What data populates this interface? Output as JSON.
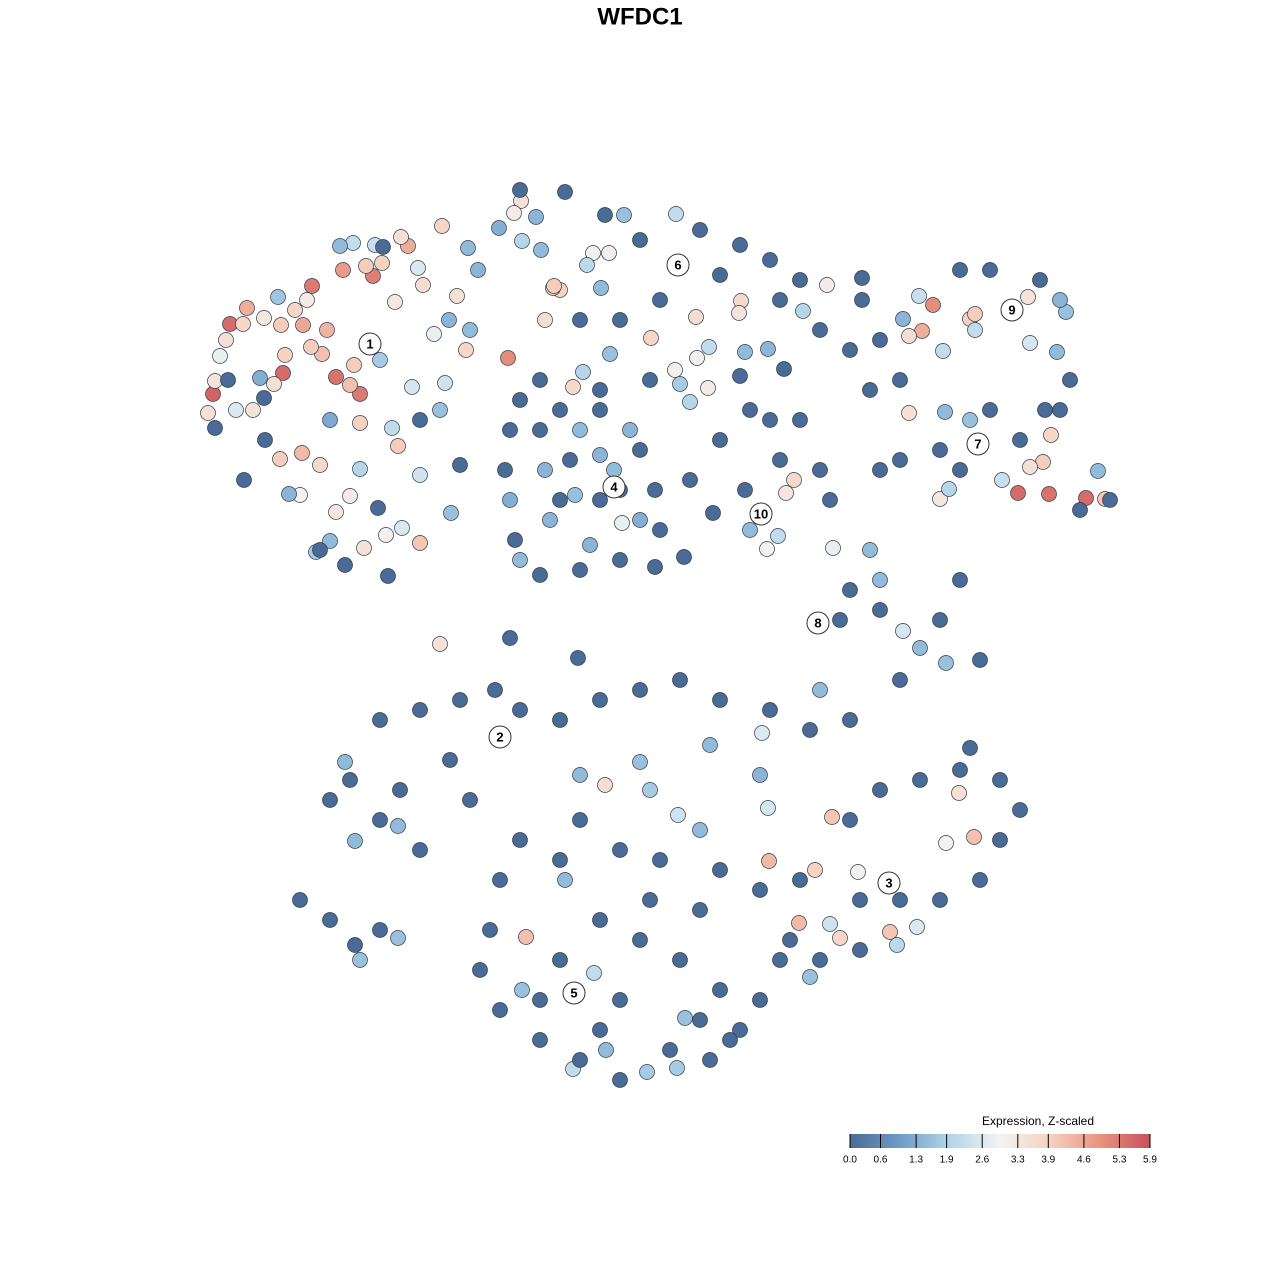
{
  "chart_data": {
    "type": "scatter",
    "title": "WFDC1",
    "xlim": [
      195,
      1135
    ],
    "ylim": [
      1095,
      185
    ],
    "x": [
      230,
      213,
      283,
      312,
      343,
      373,
      360,
      336,
      508,
      408,
      247,
      303,
      327,
      350,
      302,
      366,
      382,
      243,
      281,
      295,
      285,
      322,
      311,
      354,
      280,
      320,
      360,
      398,
      420,
      442,
      401,
      423,
      457,
      466,
      215,
      226,
      208,
      253,
      274,
      307,
      264,
      395,
      364,
      350,
      336,
      386,
      440,
      220,
      236,
      300,
      402,
      353,
      375,
      418,
      434,
      412,
      392,
      445,
      360,
      316,
      330,
      451,
      278,
      289,
      340,
      468,
      478,
      449,
      420,
      260,
      330,
      380,
      440,
      470,
      244,
      228,
      215,
      264,
      320,
      345,
      388,
      383,
      420,
      460,
      378,
      265,
      521,
      514,
      560,
      553,
      554,
      545,
      573,
      593,
      609,
      696,
      651,
      741,
      827,
      739,
      697,
      708,
      675,
      536,
      541,
      587,
      624,
      676,
      601,
      610,
      745,
      768,
      709,
      522,
      499,
      803,
      680,
      690,
      583,
      520,
      565,
      605,
      640,
      700,
      740,
      770,
      800,
      820,
      850,
      780,
      720,
      660,
      620,
      580,
      540,
      520,
      600,
      650,
      740,
      784,
      862,
      614,
      600,
      575,
      550,
      590,
      622,
      640,
      520,
      545,
      580,
      510,
      630,
      505,
      510,
      540,
      560,
      600,
      640,
      655,
      660,
      620,
      580,
      540,
      515,
      560,
      600,
      570,
      620,
      655,
      684,
      933,
      922,
      970,
      975,
      1018,
      1049,
      1086,
      1105,
      1043,
      1051,
      1028,
      1030,
      940,
      909,
      909,
      1014,
      919,
      975,
      943,
      949,
      1002,
      1066,
      1057,
      1098,
      903,
      945,
      970,
      1060,
      1030,
      862,
      880,
      900,
      960,
      990,
      1040,
      1070,
      1060,
      1020,
      990,
      940,
      900,
      870,
      1080,
      1110,
      1045,
      880,
      960,
      794,
      786,
      767,
      760,
      750,
      778,
      870,
      880,
      903,
      946,
      920,
      833,
      745,
      780,
      713,
      830,
      850,
      840,
      880,
      900,
      940,
      980,
      960,
      820,
      770,
      720,
      690,
      750,
      800,
      345,
      355,
      398,
      500,
      330,
      350,
      380,
      420,
      460,
      495,
      520,
      400,
      420,
      380,
      450,
      470,
      300,
      330,
      355,
      360,
      380,
      398,
      510,
      578,
      605,
      526,
      769,
      815,
      832,
      799,
      974,
      959,
      840,
      890,
      573,
      606,
      647,
      677,
      685,
      594,
      522,
      650,
      678,
      762,
      710,
      768,
      858,
      946,
      897,
      917,
      830,
      810,
      580,
      640,
      700,
      760,
      820,
      565,
      560,
      600,
      640,
      680,
      720,
      770,
      810,
      850,
      580,
      620,
      660,
      720,
      760,
      560,
      520,
      500,
      490,
      480,
      500,
      540,
      580,
      620,
      670,
      710,
      740,
      760,
      720,
      680,
      640,
      600,
      560,
      620,
      540,
      790,
      800,
      850,
      880,
      920,
      960,
      1000,
      1020,
      1000,
      980,
      940,
      900,
      860,
      820,
      780,
      970,
      860,
      700,
      650,
      600,
      700,
      730
    ],
    "y": [
      324,
      394,
      373,
      286,
      270,
      276,
      394,
      377,
      358,
      246,
      308,
      325,
      330,
      385,
      453,
      266,
      263,
      324,
      325,
      310,
      355,
      354,
      347,
      365,
      459,
      465,
      423,
      446,
      543,
      226,
      237,
      285,
      296,
      350,
      381,
      340,
      413,
      410,
      384,
      300,
      318,
      302,
      548,
      496,
      512,
      535,
      644,
      356,
      410,
      495,
      528,
      243,
      245,
      268,
      334,
      387,
      428,
      383,
      469,
      552,
      541,
      513,
      297,
      494,
      246,
      248,
      270,
      320,
      475,
      378,
      420,
      360,
      410,
      330,
      480,
      380,
      428,
      398,
      550,
      565,
      576,
      247,
      420,
      465,
      508,
      440,
      201,
      213,
      290,
      288,
      286,
      320,
      387,
      253,
      253,
      317,
      338,
      301,
      285,
      313,
      358,
      388,
      370,
      217,
      250,
      265,
      215,
      214,
      288,
      354,
      352,
      349,
      347,
      241,
      228,
      311,
      384,
      402,
      372,
      190,
      192,
      215,
      240,
      230,
      245,
      260,
      280,
      330,
      350,
      300,
      275,
      300,
      320,
      320,
      380,
      400,
      390,
      380,
      376,
      369,
      278,
      470,
      455,
      495,
      520,
      545,
      523,
      520,
      560,
      470,
      430,
      500,
      430,
      470,
      430,
      430,
      410,
      410,
      450,
      490,
      530,
      560,
      570,
      575,
      540,
      500,
      500,
      460,
      490,
      567,
      557,
      305,
      331,
      319,
      314,
      493,
      494,
      498,
      499,
      462,
      435,
      297,
      467,
      499,
      413,
      336,
      312,
      296,
      330,
      351,
      489,
      480,
      312,
      352,
      471,
      319,
      412,
      420,
      300,
      343,
      300,
      340,
      380,
      270,
      270,
      280,
      380,
      410,
      440,
      410,
      450,
      460,
      390,
      510,
      500,
      410,
      470,
      470,
      480,
      493,
      549,
      512,
      530,
      536,
      550,
      580,
      631,
      663,
      648,
      548,
      490,
      460,
      513,
      500,
      590,
      620,
      610,
      680,
      620,
      660,
      580,
      470,
      420,
      440,
      480,
      410,
      420,
      762,
      841,
      826,
      740,
      800,
      780,
      720,
      710,
      700,
      690,
      710,
      790,
      850,
      820,
      760,
      800,
      900,
      920,
      945,
      960,
      930,
      938,
      638,
      658,
      785,
      937,
      861,
      870,
      817,
      923,
      837,
      793,
      938,
      932,
      1069,
      1050,
      1072,
      1068,
      1018,
      973,
      990,
      790,
      815,
      733,
      745,
      808,
      872,
      843,
      945,
      927,
      924,
      977,
      775,
      762,
      830,
      775,
      690,
      880,
      720,
      700,
      690,
      680,
      700,
      710,
      730,
      720,
      820,
      850,
      860,
      870,
      890,
      860,
      840,
      880,
      930,
      970,
      1010,
      1040,
      1060,
      1080,
      1050,
      1060,
      1030,
      1000,
      990,
      960,
      940,
      920,
      960,
      1000,
      1000,
      940,
      880,
      820,
      790,
      780,
      770,
      780,
      810,
      840,
      880,
      900,
      900,
      950,
      960,
      960,
      748,
      900,
      910,
      900,
      1030,
      1020,
      1040
    ],
    "values": [
      5.5,
      5.6,
      5.5,
      5.3,
      4.8,
      5.2,
      5.3,
      5.4,
      5.0,
      4.5,
      4.5,
      4.6,
      4.4,
      4.2,
      4.3,
      4.0,
      3.9,
      3.8,
      4.0,
      3.8,
      3.9,
      4.2,
      4.0,
      4.0,
      4.0,
      3.7,
      3.9,
      4.0,
      4.1,
      3.8,
      3.5,
      3.6,
      3.5,
      3.8,
      3.4,
      3.5,
      3.5,
      3.4,
      3.5,
      3.2,
      3.3,
      3.3,
      3.4,
      3.2,
      3.3,
      3.0,
      3.5,
      2.8,
      2.6,
      2.9,
      2.6,
      2.2,
      2.3,
      2.6,
      2.8,
      2.5,
      2.2,
      2.4,
      2.0,
      1.8,
      1.5,
      1.6,
      1.7,
      1.4,
      1.5,
      1.5,
      1.4,
      1.4,
      2.4,
      1.3,
      1.2,
      1.8,
      1.6,
      1.5,
      0,
      0,
      0,
      0,
      0,
      0,
      0,
      0,
      0,
      0,
      0,
      0,
      3.5,
      3.2,
      3.9,
      4.0,
      4.0,
      3.6,
      3.7,
      3.0,
      3.1,
      3.6,
      3.8,
      3.7,
      3.2,
      3.4,
      3.0,
      3.2,
      3.0,
      1.4,
      1.5,
      2.1,
      1.6,
      2.2,
      1.5,
      1.6,
      1.5,
      1.4,
      2.2,
      2.0,
      1.3,
      2.0,
      1.8,
      2.0,
      2.0,
      0,
      0,
      0,
      0,
      0,
      0,
      0,
      0,
      0,
      0,
      0,
      0,
      0,
      0,
      0,
      0,
      0,
      0,
      0,
      0,
      0,
      0,
      1.5,
      1.4,
      1.6,
      1.4,
      1.4,
      2.8,
      1.3,
      1.5,
      1.4,
      1.5,
      1.3,
      1.4,
      0,
      0,
      0,
      0,
      0,
      0,
      0,
      0,
      0,
      0,
      0,
      0,
      0,
      0,
      0,
      0,
      0,
      0,
      5.0,
      4.5,
      3.9,
      4.0,
      5.5,
      5.4,
      5.5,
      4.1,
      4.0,
      3.8,
      3.4,
      3.5,
      3.3,
      3.5,
      3.6,
      3.3,
      2.3,
      2.2,
      2.2,
      2.0,
      2.3,
      1.6,
      1.5,
      1.5,
      1.4,
      1.5,
      1.6,
      1.4,
      2.5,
      0,
      0,
      0,
      0,
      0,
      0,
      0,
      0,
      0,
      0,
      0,
      0,
      0,
      0,
      0,
      0,
      0,
      0,
      3.7,
      3.3,
      3.0,
      1.8,
      1.5,
      2.2,
      1.5,
      1.5,
      2.5,
      1.6,
      1.5,
      2.8,
      0,
      0,
      0,
      0,
      0,
      0,
      0,
      0,
      0,
      0,
      0,
      0,
      0,
      0,
      0,
      0,
      0,
      1.5,
      1.5,
      1.5,
      1.5,
      0,
      0,
      0,
      0,
      0,
      0,
      0,
      0,
      0,
      0,
      0,
      0,
      0,
      0,
      0,
      1.6,
      0,
      1.6,
      0,
      0,
      3.6,
      4.2,
      4.3,
      3.9,
      4.1,
      4.3,
      4.2,
      3.5,
      3.8,
      4.1,
      2.2,
      1.5,
      1.8,
      1.8,
      1.6,
      2.2,
      1.6,
      1.8,
      2.4,
      2.6,
      1.5,
      2.5,
      3.0,
      3.0,
      2.1,
      2.6,
      2.4,
      1.6,
      1.5,
      1.6,
      1.5,
      1.4,
      1.5,
      1.5,
      0,
      0,
      0,
      0,
      0,
      0,
      0,
      0,
      0,
      0,
      0,
      0,
      0,
      0,
      0,
      0,
      0,
      0,
      0,
      0,
      0,
      0,
      0,
      0,
      0,
      0,
      0,
      0,
      0,
      0,
      0,
      0,
      0,
      0,
      0,
      0,
      0,
      0,
      0,
      0,
      0,
      0,
      0,
      0,
      0,
      0,
      0,
      0,
      0,
      0,
      0,
      0,
      0,
      0,
      0
    ],
    "clim": [
      0,
      5.9
    ],
    "colorscale": [
      "#4a6b96",
      "#6e9cc8",
      "#b3d5e8",
      "#f3f3f3",
      "#f6d1bf",
      "#e8937f",
      "#c8505b"
    ],
    "colorbar_title": "Expression, Z-scaled",
    "colorbar_ticks": [
      {
        "value": 0,
        "label": "0.0"
      },
      0.6,
      1.3,
      1.9,
      2.6,
      3.3,
      3.9,
      4.6,
      5.3,
      5.9
    ],
    "cluster_labels": [
      {
        "text": "1",
        "x": 370,
        "y": 344
      },
      {
        "text": "2",
        "x": 500,
        "y": 737
      },
      {
        "text": "3",
        "x": 889,
        "y": 883
      },
      {
        "text": "4",
        "x": 614,
        "y": 487
      },
      {
        "text": "5",
        "x": 574,
        "y": 993
      },
      {
        "text": "6",
        "x": 678,
        "y": 265
      },
      {
        "text": "7",
        "x": 978,
        "y": 444
      },
      {
        "text": "8",
        "x": 818,
        "y": 623
      },
      {
        "text": "9",
        "x": 1012,
        "y": 310
      },
      {
        "text": "10",
        "x": 761,
        "y": 514
      }
    ]
  }
}
